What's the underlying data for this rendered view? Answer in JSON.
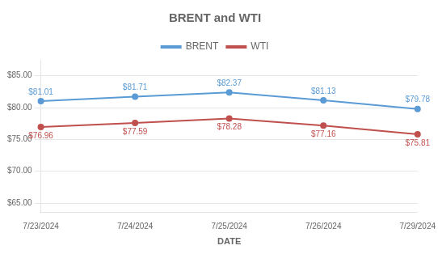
{
  "chart_data": {
    "type": "line",
    "title": "BRENT and WTI",
    "xlabel": "DATE",
    "categories": [
      "7/23/2024",
      "7/24/2024",
      "7/25/2024",
      "7/26/2024",
      "7/29/2024"
    ],
    "series": [
      {
        "name": "BRENT",
        "color": "#5B9BD5",
        "marker": "circle",
        "values": [
          81.01,
          81.71,
          82.37,
          81.13,
          79.78
        ],
        "value_labels": [
          "$81.01",
          "$81.71",
          "$82.37",
          "$81.13",
          "$79.78"
        ]
      },
      {
        "name": "WTI",
        "color": "#C0504D",
        "marker": "circle",
        "values": [
          76.96,
          77.59,
          78.28,
          77.16,
          75.81
        ],
        "value_labels": [
          "$76.96",
          "$77.59",
          "$78.28",
          "$77.16",
          "$75.81"
        ]
      }
    ],
    "ylim": [
      63.5,
      87.5
    ],
    "yticks": [
      {
        "value": 65.0,
        "label": "$65.00"
      },
      {
        "value": 70.0,
        "label": "$70.00"
      },
      {
        "value": 75.0,
        "label": "$75.00"
      },
      {
        "value": 80.0,
        "label": "$80.00"
      },
      {
        "value": 85.0,
        "label": "$85.00"
      }
    ],
    "grid": true,
    "legend": "top",
    "data_labels": true
  }
}
